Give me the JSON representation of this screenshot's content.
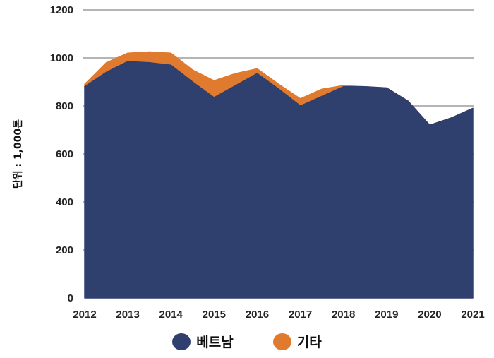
{
  "chart_data": {
    "type": "area",
    "stacked": true,
    "title": "",
    "xlabel": "",
    "ylabel": "단위 : 1,000톤",
    "x": [
      2012,
      2012.5,
      2013,
      2013.5,
      2014,
      2014.5,
      2015,
      2015.5,
      2016,
      2016.5,
      2017,
      2017.5,
      2018,
      2018.5,
      2019,
      2019.5,
      2020,
      2020.5,
      2021
    ],
    "x_tick_labels": [
      "2012",
      "2013",
      "2014",
      "2015",
      "2016",
      "2017",
      "2018",
      "2019",
      "2020",
      "2021"
    ],
    "x_tick_values": [
      2012,
      2013,
      2014,
      2015,
      2016,
      2017,
      2018,
      2019,
      2020,
      2021
    ],
    "ylim": [
      0,
      1200
    ],
    "y_tick_labels": [
      "0",
      "200",
      "400",
      "600",
      "800",
      "1000",
      "1200"
    ],
    "y_tick_values": [
      0,
      200,
      400,
      600,
      800,
      1000,
      1200
    ],
    "grid": "horizontal",
    "legend_position": "bottom-center",
    "series": [
      {
        "name": "베트남",
        "color": "#2f3f6e",
        "values": [
          880,
          940,
          985,
          980,
          970,
          900,
          835,
          885,
          935,
          870,
          800,
          840,
          880,
          880,
          875,
          820,
          720,
          750,
          790
        ]
      },
      {
        "name": "기타",
        "color": "#e07a2e",
        "values": [
          10,
          40,
          35,
          45,
          50,
          50,
          70,
          50,
          20,
          20,
          30,
          30,
          5,
          0,
          0,
          0,
          0,
          0,
          0
        ]
      }
    ]
  }
}
